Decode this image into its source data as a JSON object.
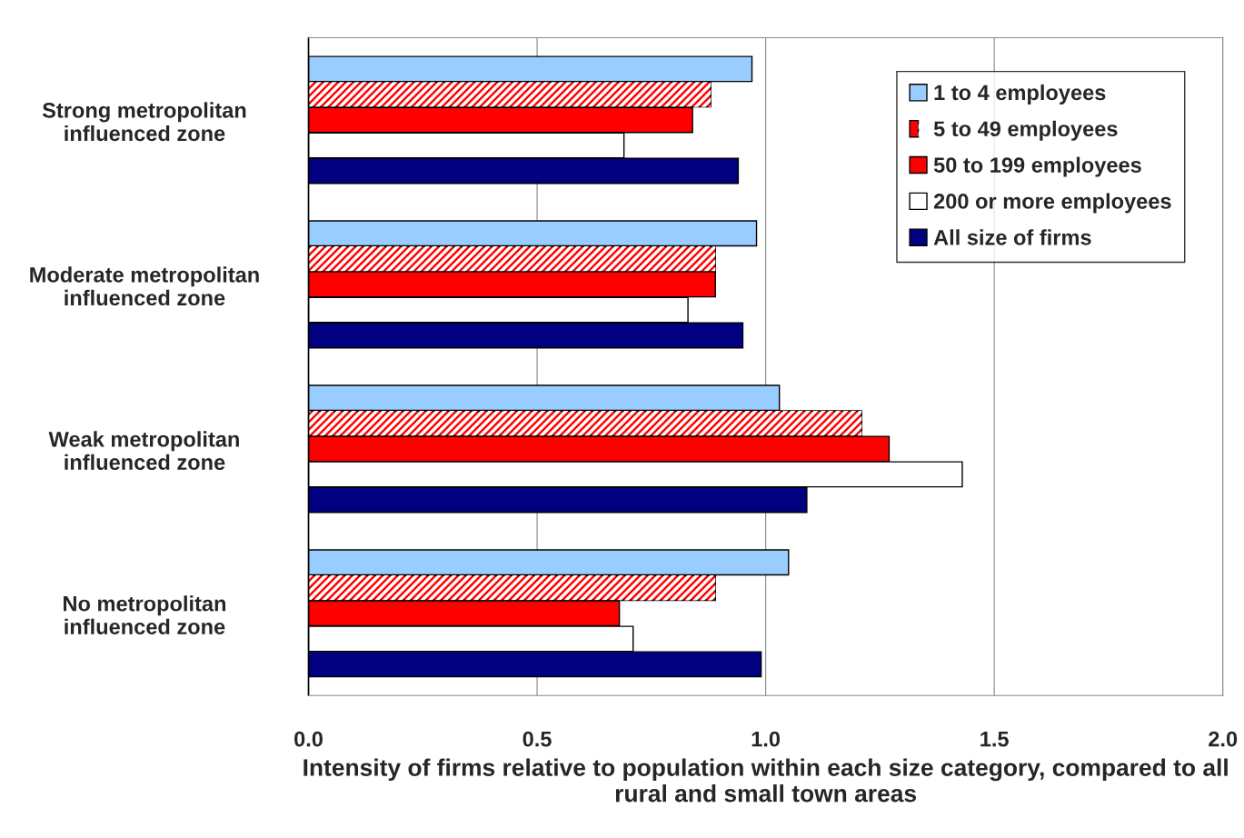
{
  "chart_data": {
    "type": "bar",
    "orientation": "horizontal",
    "xlabel": "Intensity of firms relative to population within each size category, compared to all rural and small town areas",
    "categories": [
      "Strong metropolitan\ninfluenced zone",
      "Moderate metropolitan\ninfluenced zone",
      "Weak metropolitan\ninfluenced zone",
      "No metropolitan\ninfluenced zone"
    ],
    "series": [
      {
        "name": "1 to 4 employees",
        "color": "#99ccff",
        "values": [
          0.97,
          0.98,
          1.03,
          1.05
        ]
      },
      {
        "name": "5 to 49 employees",
        "color": "#ff0000",
        "values": [
          0.88,
          0.89,
          1.21,
          0.89
        ]
      },
      {
        "name": "50 to 199 employees",
        "color": "#ff0000",
        "values": [
          0.84,
          0.89,
          1.27,
          0.68
        ]
      },
      {
        "name": "200 or more employees",
        "color": "#ffffff",
        "values": [
          0.69,
          0.83,
          1.43,
          0.71
        ]
      },
      {
        "name": "All size of firms",
        "color": "#000080",
        "values": [
          0.94,
          0.95,
          1.09,
          0.99
        ]
      }
    ],
    "xlim": [
      0,
      2
    ],
    "xticks": [
      {
        "value": 0,
        "label": "0.0"
      },
      {
        "value": 0.5,
        "label": "0.5"
      },
      {
        "value": 1,
        "label": "1.0"
      },
      {
        "value": 1.5,
        "label": "1.5"
      },
      {
        "value": 2,
        "label": "2.0"
      }
    ],
    "grid": "x",
    "legend": "top right"
  }
}
